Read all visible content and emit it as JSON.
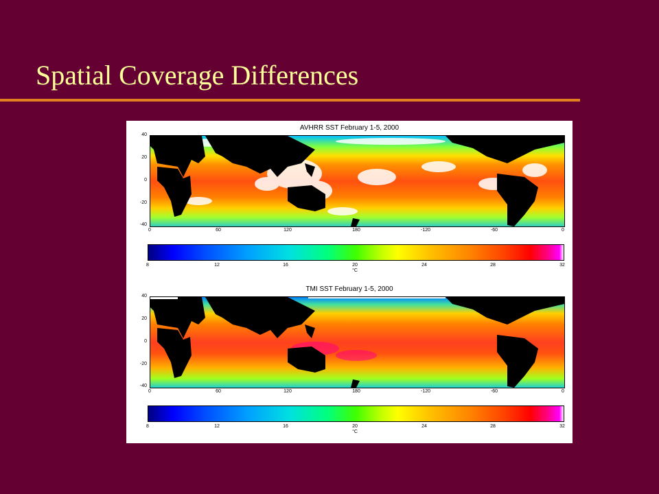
{
  "slide": {
    "title": "Spatial Coverage Differences"
  },
  "panels": [
    {
      "title": "AVHRR SST February 1-5, 2000",
      "y_ticks": [
        "40",
        "20",
        "0",
        "-20",
        "-40"
      ],
      "x_ticks": [
        "0",
        "60",
        "120",
        "180",
        "-120",
        "-60",
        "0"
      ],
      "colorbar_ticks": [
        "8",
        "12",
        "16",
        "20",
        "24",
        "28",
        "32"
      ],
      "colorbar_unit": "°C"
    },
    {
      "title": "TMI SST February 1-5, 2000",
      "y_ticks": [
        "40",
        "20",
        "0",
        "-20",
        "-40"
      ],
      "x_ticks": [
        "0",
        "60",
        "120",
        "180",
        "-120",
        "-60",
        "0"
      ],
      "colorbar_ticks": [
        "8",
        "12",
        "16",
        "20",
        "24",
        "28",
        "32"
      ],
      "colorbar_unit": "°C"
    }
  ],
  "colors": {
    "background": "#650033",
    "title": "#ffff99",
    "rule": "#e0801f"
  }
}
